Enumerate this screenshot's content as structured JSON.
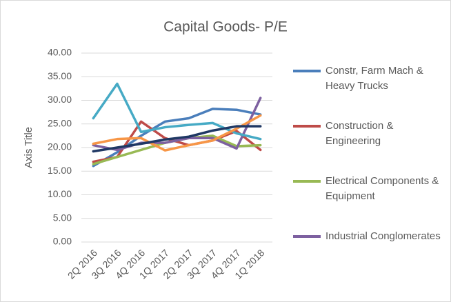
{
  "chart_data": {
    "type": "line",
    "title": "Capital Goods- P/E",
    "y_label": "Axis Title",
    "categories": [
      "2Q 2016",
      "3Q 2016",
      "4Q 2016",
      "1Q 2017",
      "2Q 2017",
      "3Q 2017",
      "4Q 2017",
      "1Q 2018"
    ],
    "series": [
      {
        "name": "Constr, Farm Mach & Heavy Trucks",
        "color": "#4a7ebb",
        "values": [
          16.1,
          19.0,
          22.5,
          25.5,
          26.2,
          28.2,
          28.0,
          27.0
        ]
      },
      {
        "name": "Construction & Engineering",
        "color": "#be4b48",
        "values": [
          17.0,
          18.0,
          25.5,
          22.0,
          20.5,
          21.5,
          23.5,
          19.5
        ]
      },
      {
        "name": "Electrical Components & Equipment",
        "color": "#98b954",
        "values": [
          16.5,
          18.0,
          19.5,
          21.0,
          22.0,
          22.5,
          20.3,
          20.5
        ]
      },
      {
        "name": "Industrial Conglomerates",
        "color": "#7d60a0",
        "values": [
          20.5,
          19.5,
          21.0,
          21.0,
          22.0,
          22.0,
          19.8,
          30.5
        ]
      },
      {
        "color": "#46aac5",
        "values": [
          26.2,
          33.5,
          23.3,
          24.3,
          24.8,
          25.2,
          23.0,
          21.8
        ]
      },
      {
        "color": "#f79646",
        "values": [
          20.8,
          21.8,
          22.0,
          19.4,
          20.5,
          21.5,
          24.0,
          26.8
        ]
      },
      {
        "color": "#1f3864",
        "values": [
          19.2,
          20.0,
          20.8,
          21.7,
          22.3,
          23.6,
          24.5,
          24.5
        ]
      }
    ],
    "ylim": [
      0,
      40
    ],
    "yticks": [
      {
        "value": 0,
        "label": "0.00"
      },
      {
        "value": 5,
        "label": "5.00"
      },
      {
        "value": 10,
        "label": "10.00"
      },
      {
        "value": 15,
        "label": "15.00"
      },
      {
        "value": 20,
        "label": "20.00"
      },
      {
        "value": 25,
        "label": "25.00"
      },
      {
        "value": 30,
        "label": "30.00"
      },
      {
        "value": 35,
        "label": "35.00"
      },
      {
        "value": 40,
        "label": "40.00"
      }
    ],
    "grid": true
  }
}
